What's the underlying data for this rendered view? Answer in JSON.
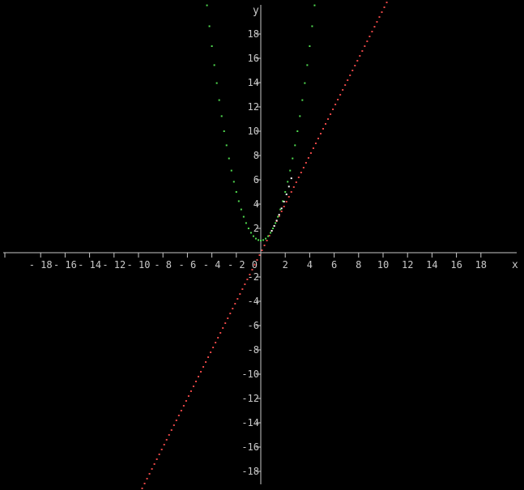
{
  "chart_data": {
    "type": "scatter",
    "background": "#000000",
    "axis_color": "#c8c8c8",
    "xlabel": "x",
    "ylabel": "y",
    "xlim": [
      -20,
      20
    ],
    "ylim": [
      -19,
      20
    ],
    "x_ticks": [
      -18,
      -16,
      -14,
      -12,
      -10,
      -8,
      -6,
      -4,
      -2,
      0,
      2,
      4,
      6,
      8,
      10,
      12,
      14,
      16,
      18
    ],
    "y_ticks": [
      -18,
      -16,
      -14,
      -12,
      -10,
      -8,
      -6,
      -4,
      -2,
      2,
      4,
      6,
      8,
      10,
      12,
      14,
      16,
      18
    ],
    "grid": false,
    "series": [
      {
        "color": "#e64646",
        "function": "y = 2x",
        "x_range": [
          -10.5,
          10.5
        ],
        "step": 0.2
      },
      {
        "color": "#50dc50",
        "function": "y = x^2 + 1",
        "x_range": [
          -4.6,
          4.6
        ],
        "step": 0.2
      },
      {
        "color": "#ffffff",
        "note_hidden": true,
        "function": "intersection band",
        "x_range": [
          0.9,
          2.5
        ],
        "step": 0.2
      }
    ]
  }
}
